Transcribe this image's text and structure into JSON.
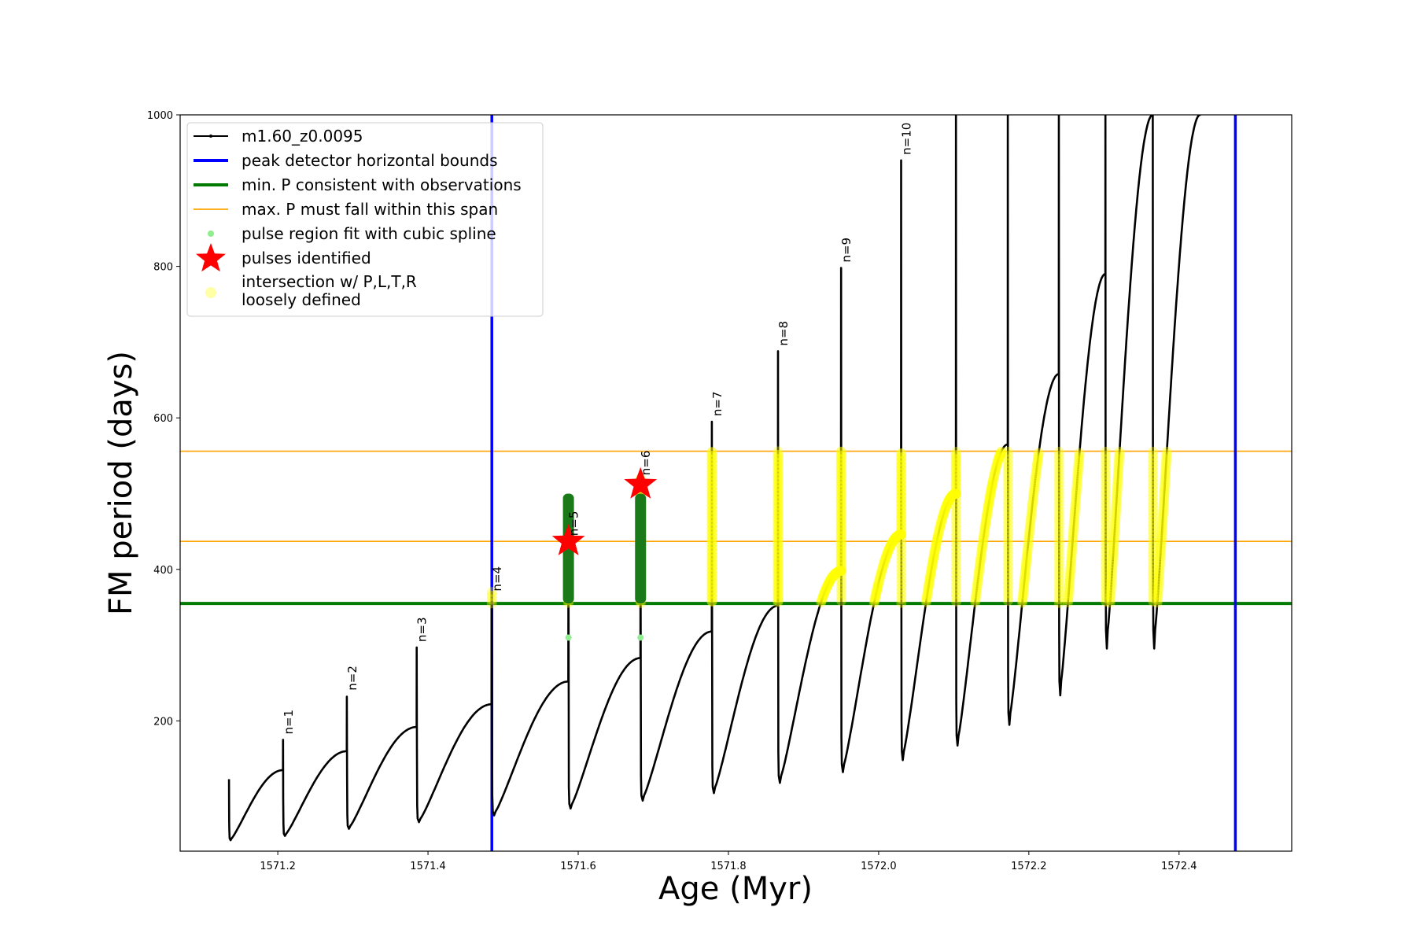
{
  "chart_data": {
    "type": "line",
    "xlabel": "Age (Myr)",
    "ylabel": "FM period (days)",
    "xlim": [
      1571.07,
      1572.55
    ],
    "ylim": [
      28,
      1000
    ],
    "x_ticks": [
      "1571.2",
      "1571.4",
      "1571.6",
      "1571.8",
      "1572.0",
      "1572.2",
      "1572.4"
    ],
    "x_tick_values": [
      1571.2,
      1571.4,
      1571.6,
      1571.8,
      1572.0,
      1572.2,
      1572.4
    ],
    "y_ticks": [
      "200",
      "400",
      "600",
      "800",
      "1000"
    ],
    "y_tick_values": [
      200,
      400,
      600,
      800,
      1000
    ],
    "grid": false,
    "legend_position": "top-left",
    "colors": {
      "track": "#000000",
      "bounds": "#0000ff",
      "min_p": "#007a00",
      "max_p": "#ffa500",
      "spline": "#90ee90",
      "pulse_region": "#1a7a1a",
      "pulse": "#ff0000",
      "intersection": "#ffff00"
    },
    "series": [
      {
        "name": "m1.60_z0.0095",
        "pulses": [
          {
            "x0": 1571.135,
            "peak": 123,
            "xPeak": 1571.207,
            "v": 135
          },
          {
            "x0": 1571.207,
            "peak": 175,
            "xPeak": 1571.292,
            "v": 160
          },
          {
            "x0": 1571.292,
            "peak": 232,
            "xPeak": 1571.385,
            "v": 192
          },
          {
            "x0": 1571.385,
            "peak": 297,
            "xPeak": 1571.485,
            "v": 222
          },
          {
            "x0": 1571.485,
            "peak": 370,
            "xPeak": 1571.587,
            "v": 252
          },
          {
            "x0": 1571.587,
            "peak": 460,
            "xPeak": 1571.683,
            "v": 283
          },
          {
            "x0": 1571.683,
            "peak": 520,
            "xPeak": 1571.778,
            "v": 318
          },
          {
            "x0": 1571.778,
            "peak": 595,
            "xPeak": 1571.866,
            "v": 352
          },
          {
            "x0": 1571.866,
            "peak": 688,
            "xPeak": 1571.95,
            "v": 398
          },
          {
            "x0": 1571.95,
            "peak": 798,
            "xPeak": 1572.03,
            "v": 446
          },
          {
            "x0": 1572.03,
            "peak": 940,
            "xPeak": 1572.103,
            "v": 500
          },
          {
            "x0": 1572.103,
            "peak": 1000,
            "xPeak": 1572.172,
            "v": 565
          },
          {
            "x0": 1572.172,
            "peak": 1000,
            "xPeak": 1572.24,
            "v": 658
          },
          {
            "x0": 1572.24,
            "peak": 1000,
            "xPeak": 1572.302,
            "v": 790
          },
          {
            "x0": 1572.302,
            "peak": 1000,
            "xPeak": 1572.365,
            "v": 1000
          },
          {
            "x0": 1572.365,
            "peak": 1000,
            "xPeak": 1572.428,
            "v": 1000
          }
        ]
      }
    ],
    "horizontal_bounds": [
      1571.485,
      1572.475
    ],
    "min_period": 355,
    "max_period_span": [
      437,
      556
    ],
    "pulse_regions": [
      1571.587,
      1571.683
    ],
    "pulses_identified": [
      {
        "x": 1571.587,
        "y": 437
      },
      {
        "x": 1571.683,
        "y": 512
      }
    ],
    "n_labels": [
      {
        "text": "n=1",
        "x": 1571.207,
        "y": 178
      },
      {
        "text": "n=2",
        "x": 1571.292,
        "y": 236
      },
      {
        "text": "n=3",
        "x": 1571.385,
        "y": 300
      },
      {
        "text": "n=4",
        "x": 1571.485,
        "y": 367
      },
      {
        "text": "n=5",
        "x": 1571.587,
        "y": 440
      },
      {
        "text": "n=6",
        "x": 1571.683,
        "y": 520
      },
      {
        "text": "n=7",
        "x": 1571.778,
        "y": 598
      },
      {
        "text": "n=8",
        "x": 1571.866,
        "y": 691
      },
      {
        "text": "n=9",
        "x": 1571.95,
        "y": 801
      },
      {
        "text": "n=10",
        "x": 1572.03,
        "y": 943
      }
    ],
    "legend": [
      {
        "key": "line",
        "label": "m1.60_z0.0095"
      },
      {
        "key": "bounds",
        "label": "peak detector horizontal bounds"
      },
      {
        "key": "min",
        "label": "min. P consistent with observations"
      },
      {
        "key": "max",
        "label": "max. P must fall within this span"
      },
      {
        "key": "spline",
        "label": "pulse region fit with cubic spline"
      },
      {
        "key": "star",
        "label": "pulses identified"
      },
      {
        "key": "intersect",
        "label": "intersection w/ P,L,T,R"
      },
      {
        "key": "intersect2",
        "label": "loosely defined"
      }
    ]
  }
}
